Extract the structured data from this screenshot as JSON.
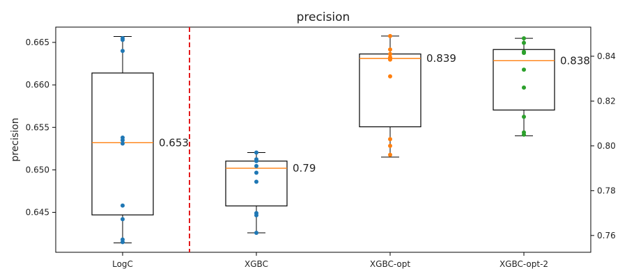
{
  "chart_data": {
    "type": "box",
    "title": "precision",
    "ylabel": "precision",
    "categories": [
      "LogC",
      "XGBC",
      "XGBC-opt",
      "XGBC-opt-2"
    ],
    "axes": {
      "left": {
        "ylim": [
          0.6403,
          0.6668
        ],
        "ticks": [
          0.645,
          0.65,
          0.655,
          0.66,
          0.665
        ],
        "tick_labels": [
          "0.645",
          "0.650",
          "0.655",
          "0.660",
          "0.665"
        ]
      },
      "right": {
        "ylim": [
          0.7525,
          0.853
        ],
        "ticks": [
          0.76,
          0.78,
          0.8,
          0.82,
          0.84
        ],
        "tick_labels": [
          "0.76",
          "0.78",
          "0.80",
          "0.82",
          "0.84"
        ]
      }
    },
    "separator": {
      "after_category": "LogC",
      "style": "dashed",
      "color": "#e31a1c"
    },
    "series": [
      {
        "category": "LogC",
        "axis": "left",
        "color": "#1f77b4",
        "box": {
          "whisker_low": 0.6414,
          "q1": 0.6447,
          "median": 0.6532,
          "q3": 0.6614,
          "whisker_high": 0.6657
        },
        "points": [
          0.6655,
          0.6653,
          0.664,
          0.6538,
          0.6535,
          0.6531,
          0.6458,
          0.6442,
          0.6418,
          0.6415
        ],
        "median_label": "0.653"
      },
      {
        "category": "XGBC",
        "axis": "right",
        "color": "#1f77b4",
        "box": {
          "whisker_low": 0.7612,
          "q1": 0.7732,
          "median": 0.79,
          "q3": 0.7932,
          "whisker_high": 0.797
        },
        "points": [
          0.797,
          0.794,
          0.7932,
          0.791,
          0.788,
          0.784,
          0.77,
          0.769,
          0.7612
        ],
        "median_label": "0.79"
      },
      {
        "category": "XGBC-opt",
        "axis": "right",
        "color": "#ff7f0e",
        "box": {
          "whisker_low": 0.795,
          "q1": 0.8085,
          "median": 0.839,
          "q3": 0.841,
          "whisker_high": 0.849
        },
        "points": [
          0.849,
          0.843,
          0.841,
          0.8395,
          0.839,
          0.8385,
          0.831,
          0.803,
          0.8,
          0.796
        ],
        "median_label": "0.839"
      },
      {
        "category": "XGBC-opt-2",
        "axis": "right",
        "color": "#2ca02c",
        "box": {
          "whisker_low": 0.8045,
          "q1": 0.816,
          "median": 0.838,
          "q3": 0.843,
          "whisker_high": 0.848
        },
        "points": [
          0.848,
          0.846,
          0.842,
          0.8415,
          0.834,
          0.826,
          0.813,
          0.806,
          0.805
        ],
        "median_label": "0.838"
      }
    ]
  }
}
